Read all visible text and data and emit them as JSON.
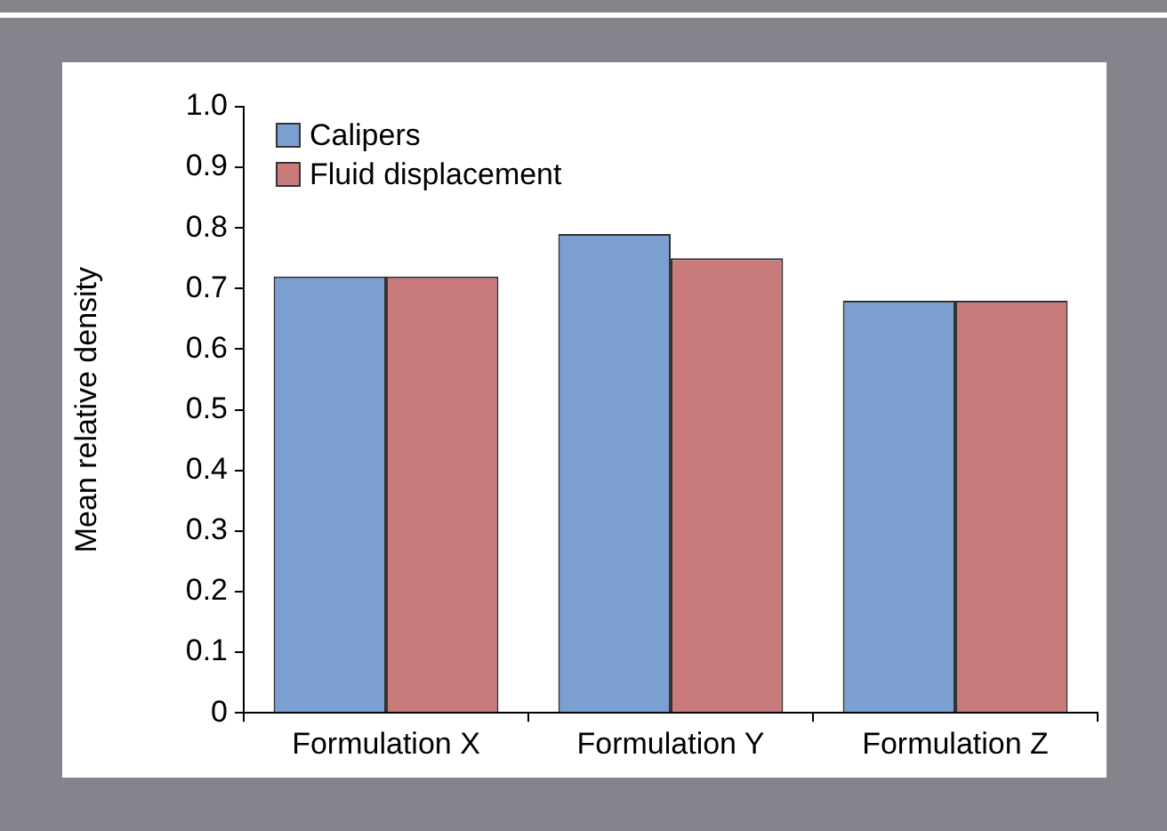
{
  "chart_data": {
    "type": "bar",
    "ylabel": "Mean relative density",
    "categories": [
      "Formulation X",
      "Formulation Y",
      "Formulation Z"
    ],
    "series": [
      {
        "name": "Calipers",
        "color": "#7b9fd0",
        "values": [
          0.72,
          0.79,
          0.68
        ]
      },
      {
        "name": "Fluid displacement",
        "color": "#c97b7c",
        "values": [
          0.72,
          0.75,
          0.68
        ]
      }
    ],
    "ylim": [
      0,
      1.0
    ],
    "yticks": [
      0,
      {
        "value": 0.1,
        "label": "0.1"
      },
      {
        "value": 0.2,
        "label": "0.2"
      },
      {
        "value": 0.3,
        "label": "0.3"
      },
      {
        "value": 0.4,
        "label": "0.4"
      },
      {
        "value": 0.5,
        "label": "0.5"
      },
      {
        "value": 0.6,
        "label": "0.6"
      },
      {
        "value": 0.7,
        "label": "0.7"
      },
      {
        "value": 0.8,
        "label": "0.8"
      },
      {
        "value": 0.9,
        "label": "0.9"
      },
      {
        "value": 1.0,
        "label": "1.0"
      }
    ],
    "grid": false,
    "legend": "top left"
  }
}
